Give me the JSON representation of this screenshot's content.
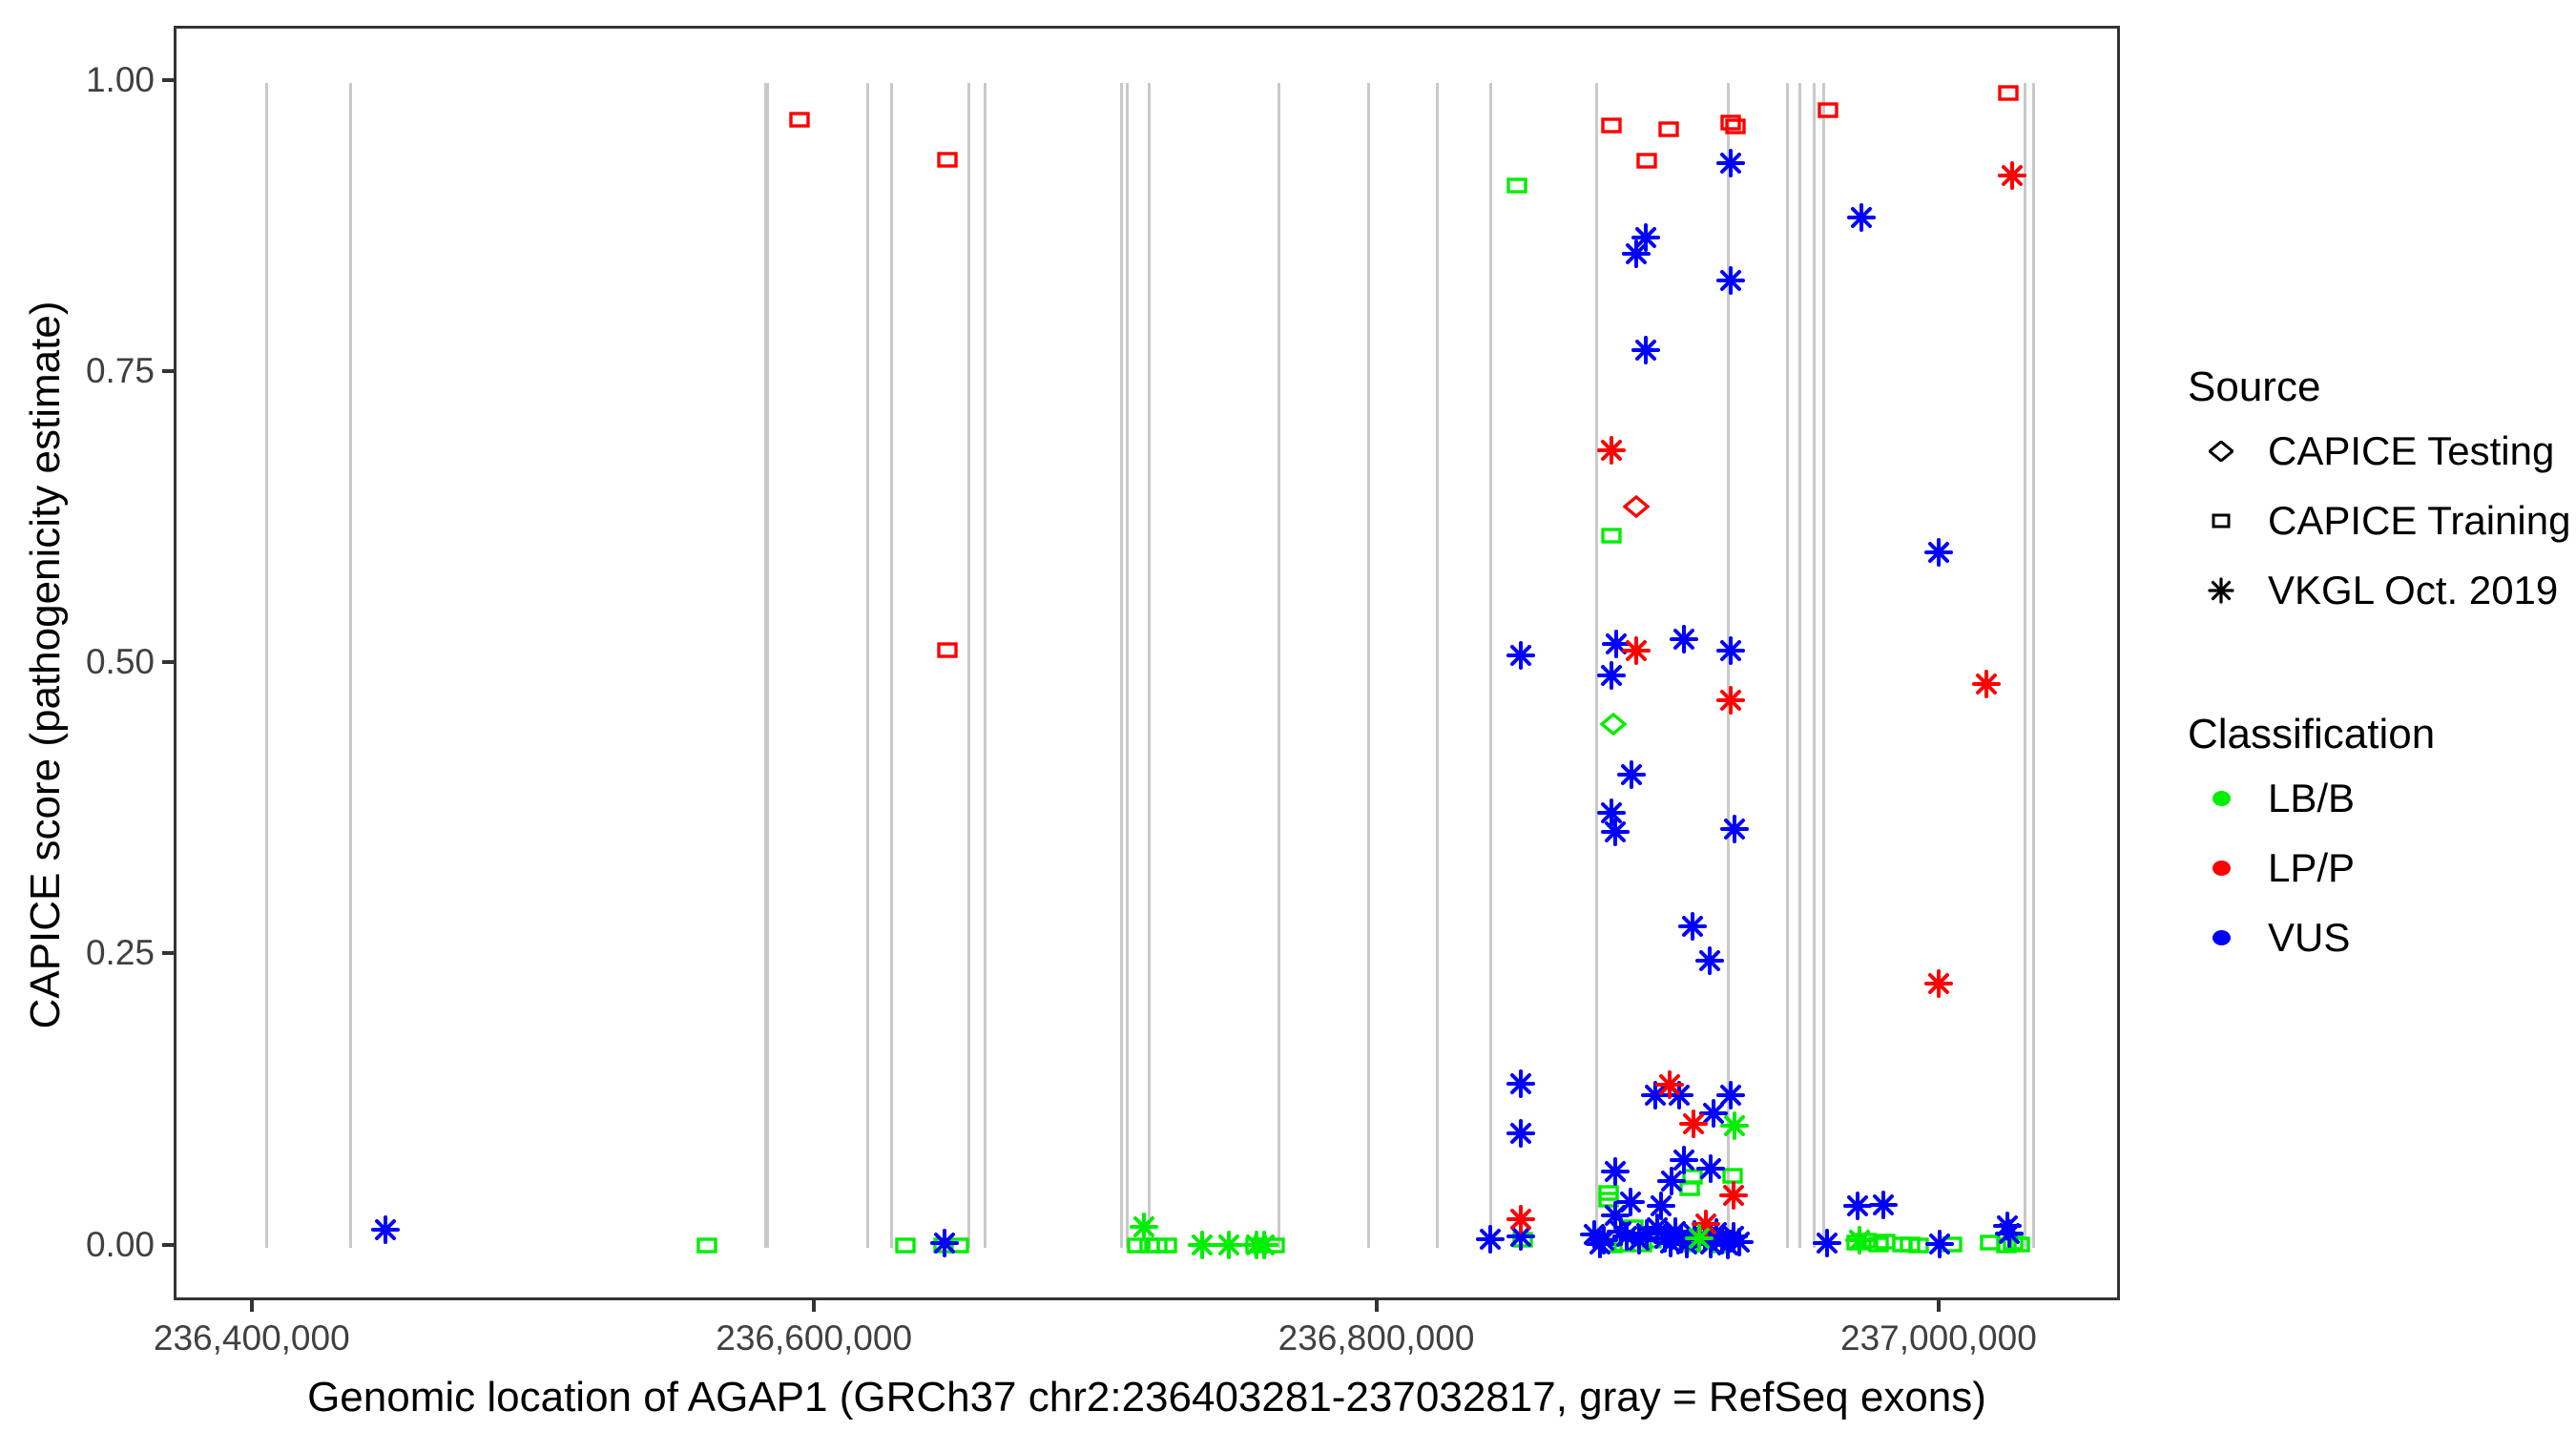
{
  "chart_data": {
    "type": "scatter",
    "title": "",
    "xlabel": "Genomic location of AGAP1 (GRCh37 chr2:236403281-237032817, gray = RefSeq exons)",
    "ylabel": "CAPICE score (pathogenicity estimate)",
    "xlim": [
      236372240,
      237064500
    ],
    "ylim": [
      -0.0477,
      1.0463
    ],
    "grid": false,
    "legend_position": "right",
    "x_ticks": [
      {
        "value": 236400000,
        "label": "236,400,000"
      },
      {
        "value": 236600000,
        "label": "236,600,000"
      },
      {
        "value": 236800000,
        "label": "236,800,000"
      },
      {
        "value": 237000000,
        "label": "237,000,000"
      }
    ],
    "y_ticks": [
      {
        "value": 1.0,
        "label": "1.00"
      },
      {
        "value": 0.75,
        "label": "0.75"
      },
      {
        "value": 0.5,
        "label": "0.50"
      },
      {
        "value": 0.25,
        "label": "0.25"
      },
      {
        "value": 0.0,
        "label": "0.00"
      }
    ],
    "exon_color": "#c9c9c9",
    "refseq_exons": [
      [
        236404240,
        3
      ],
      [
        236434100,
        3
      ],
      [
        236582270,
        5
      ],
      [
        236618240,
        3
      ],
      [
        236626730,
        3
      ],
      [
        236654180,
        3
      ],
      [
        236659920,
        3
      ],
      [
        236708480,
        3
      ],
      [
        236710490,
        3
      ],
      [
        236718220,
        3
      ],
      [
        236764520,
        3
      ],
      [
        236796150,
        3
      ],
      [
        236820820,
        3
      ],
      [
        236839760,
        3
      ],
      [
        236877430,
        3
      ],
      [
        236924160,
        3
      ],
      [
        236945100,
        3
      ],
      [
        236949610,
        3
      ],
      [
        236954700,
        3
      ],
      [
        236958100,
        3
      ],
      [
        237029800,
        3
      ],
      [
        237032800,
        3
      ]
    ],
    "classification_colors": {
      "LB/B": "#00ee00",
      "LP/P": "#ff0000",
      "VUS": "#0000ff"
    },
    "series": [
      {
        "name": "CAPICE Testing",
        "shape": "diamond",
        "points": [
          [
            236891500,
            0.636,
            "LP/P"
          ],
          [
            236883300,
            0.449,
            "LB/B"
          ]
        ]
      },
      {
        "name": "CAPICE Training",
        "shape": "square",
        "points": [
          [
            236593800,
            0.968,
            "LP/P"
          ],
          [
            236646300,
            0.934,
            "LP/P"
          ],
          [
            236646300,
            0.513,
            "LP/P"
          ],
          [
            236882700,
            0.963,
            "LP/P"
          ],
          [
            236903000,
            0.96,
            "LP/P"
          ],
          [
            236895200,
            0.933,
            "LP/P"
          ],
          [
            236924900,
            0.966,
            "LP/P"
          ],
          [
            236926600,
            0.962,
            "LP/P"
          ],
          [
            236959800,
            0.976,
            "LP/P"
          ],
          [
            237023700,
            0.991,
            "LP/P"
          ],
          [
            236561000,
            0.002,
            "LB/B"
          ],
          [
            236631600,
            0.002,
            "LB/B"
          ],
          [
            236645000,
            0.002,
            "LB/B"
          ],
          [
            236650500,
            0.002,
            "LB/B"
          ],
          [
            236714100,
            0.002,
            "LB/B"
          ],
          [
            236718400,
            0.002,
            "LB/B"
          ],
          [
            236721000,
            0.002,
            "LB/B"
          ],
          [
            236724600,
            0.002,
            "LB/B"
          ],
          [
            236756100,
            0.002,
            "LB/B"
          ],
          [
            236762800,
            0.002,
            "LB/B"
          ],
          [
            236849100,
            0.912,
            "LB/B"
          ],
          [
            236882700,
            0.611,
            "LB/B"
          ],
          [
            236881500,
            0.047,
            "LB/B"
          ],
          [
            236881500,
            0.041,
            "LB/B"
          ],
          [
            236925600,
            0.062,
            "LB/B"
          ],
          [
            236910600,
            0.051,
            "LB/B"
          ],
          [
            236911600,
            0.061,
            "LB/B"
          ],
          [
            236890500,
            0.017,
            "LB/B"
          ],
          [
            236897000,
            0.006,
            "LB/B"
          ],
          [
            236883000,
            0.002,
            "LB/B"
          ],
          [
            236887000,
            0.003,
            "LB/B"
          ],
          [
            236893500,
            0.003,
            "LB/B"
          ],
          [
            236910000,
            0.003,
            "LB/B"
          ],
          [
            236921000,
            0.002,
            "LB/B"
          ],
          [
            236851200,
            0.007,
            "LB/B"
          ],
          [
            236969700,
            0.004,
            "LB/B"
          ],
          [
            236973100,
            0.006,
            "LB/B"
          ],
          [
            236977600,
            0.003,
            "LB/B"
          ],
          [
            236979900,
            0.005,
            "LB/B"
          ],
          [
            236986100,
            0.003,
            "LB/B"
          ],
          [
            236988900,
            0.003,
            "LB/B"
          ],
          [
            236991800,
            0.002,
            "LB/B"
          ],
          [
            237003700,
            0.003,
            "LB/B"
          ],
          [
            237017200,
            0.004,
            "LB/B"
          ],
          [
            237023000,
            0.002,
            "LB/B"
          ],
          [
            237025500,
            0.004,
            "LB/B"
          ],
          [
            237027800,
            0.003,
            "LB/B"
          ]
        ]
      },
      {
        "name": "VKGL Oct. 2019",
        "shape": "asterisk",
        "points": [
          [
            236446400,
            0.015,
            "VUS"
          ],
          [
            236645400,
            0.004,
            "VUS"
          ],
          [
            236839600,
            0.007,
            "VUS"
          ],
          [
            236850300,
            0.508,
            "VUS"
          ],
          [
            236850300,
            0.141,
            "VUS"
          ],
          [
            236850300,
            0.098,
            "VUS"
          ],
          [
            236850300,
            0.01,
            "VUS"
          ],
          [
            236924900,
            0.931,
            "VUS"
          ],
          [
            236894900,
            0.867,
            "VUS"
          ],
          [
            236891500,
            0.853,
            "VUS"
          ],
          [
            236924900,
            0.83,
            "VUS"
          ],
          [
            236894900,
            0.77,
            "VUS"
          ],
          [
            236889800,
            0.406,
            "VUS"
          ],
          [
            236882500,
            0.373,
            "VUS"
          ],
          [
            236883900,
            0.357,
            "VUS"
          ],
          [
            236926400,
            0.359,
            "VUS"
          ],
          [
            236911300,
            0.276,
            "VUS"
          ],
          [
            236917600,
            0.246,
            "VUS"
          ],
          [
            236884200,
            0.518,
            "VUS"
          ],
          [
            236908500,
            0.522,
            "VUS"
          ],
          [
            236924900,
            0.512,
            "VUS"
          ],
          [
            236882500,
            0.491,
            "VUS"
          ],
          [
            236898300,
            0.131,
            "VUS"
          ],
          [
            236906800,
            0.131,
            "VUS"
          ],
          [
            236924900,
            0.131,
            "VUS"
          ],
          [
            236919000,
            0.115,
            "VUS"
          ],
          [
            236883900,
            0.065,
            "VUS"
          ],
          [
            236908500,
            0.075,
            "VUS"
          ],
          [
            236917900,
            0.068,
            "VUS"
          ],
          [
            236889400,
            0.039,
            "VUS"
          ],
          [
            236900100,
            0.036,
            "VUS"
          ],
          [
            236904050,
            0.057,
            "VUS"
          ],
          [
            236884000,
            0.028,
            "VUS"
          ],
          [
            236886000,
            0.014,
            "VUS"
          ],
          [
            236888000,
            0.01,
            "VUS"
          ],
          [
            236892500,
            0.006,
            "VUS"
          ],
          [
            236895000,
            0.012,
            "VUS"
          ],
          [
            236899000,
            0.017,
            "VUS"
          ],
          [
            236901500,
            0.008,
            "VUS"
          ],
          [
            236903500,
            0.004,
            "VUS"
          ],
          [
            236905500,
            0.014,
            "VUS"
          ],
          [
            236907500,
            0.007,
            "VUS"
          ],
          [
            236909500,
            0.003,
            "VUS"
          ],
          [
            236912000,
            0.011,
            "VUS"
          ],
          [
            236916000,
            0.009,
            "VUS"
          ],
          [
            236918000,
            0.003,
            "VUS"
          ],
          [
            236920000,
            0.013,
            "VUS"
          ],
          [
            236922000,
            0.006,
            "VUS"
          ],
          [
            236924000,
            0.002,
            "VUS"
          ],
          [
            236926000,
            0.01,
            "VUS"
          ],
          [
            236928000,
            0.005,
            "VUS"
          ],
          [
            236880000,
            0.006,
            "VUS"
          ],
          [
            236878500,
            0.003,
            "VUS"
          ],
          [
            236876500,
            0.011,
            "VUS"
          ],
          [
            236971500,
            0.884,
            "VUS"
          ],
          [
            236999100,
            0.597,
            "VUS"
          ],
          [
            236970200,
            0.036,
            "VUS"
          ],
          [
            236979300,
            0.037,
            "VUS"
          ],
          [
            236959400,
            0.004,
            "VUS"
          ],
          [
            236999400,
            0.003,
            "VUS"
          ],
          [
            237023400,
            0.019,
            "VUS"
          ],
          [
            237024200,
            0.012,
            "VUS"
          ],
          [
            236850300,
            0.024,
            "LP/P"
          ],
          [
            236882500,
            0.684,
            "LP/P"
          ],
          [
            236924900,
            0.47,
            "LP/P"
          ],
          [
            236891500,
            0.512,
            "LP/P"
          ],
          [
            236903400,
            0.14,
            "LP/P"
          ],
          [
            236911700,
            0.106,
            "LP/P"
          ],
          [
            236926200,
            0.045,
            "LP/P"
          ],
          [
            236916200,
            0.02,
            "LP/P"
          ],
          [
            237025000,
            0.92,
            "LP/P"
          ],
          [
            237016000,
            0.484,
            "LP/P"
          ],
          [
            236999100,
            0.227,
            "LP/P"
          ],
          [
            236716400,
            0.018,
            "LB/B"
          ],
          [
            236736900,
            0.002,
            "LB/B"
          ],
          [
            236746700,
            0.002,
            "LB/B"
          ],
          [
            236756500,
            0.002,
            "LB/B"
          ],
          [
            236759200,
            0.002,
            "LB/B"
          ],
          [
            236914000,
            0.008,
            "LB/B"
          ],
          [
            236926400,
            0.105,
            "LB/B"
          ],
          [
            236971000,
            0.006,
            "LB/B"
          ]
        ]
      }
    ]
  },
  "legend": {
    "source_title": "Source",
    "source_items": [
      {
        "label": "CAPICE Testing",
        "shape": "diamond"
      },
      {
        "label": "CAPICE Training",
        "shape": "square"
      },
      {
        "label": "VKGL Oct. 2019",
        "shape": "asterisk"
      }
    ],
    "classification_title": "Classification",
    "classification_items": [
      {
        "label": "LB/B",
        "color": "#00ee00"
      },
      {
        "label": "LP/P",
        "color": "#ff0000"
      },
      {
        "label": "VUS",
        "color": "#0000ff"
      }
    ]
  }
}
